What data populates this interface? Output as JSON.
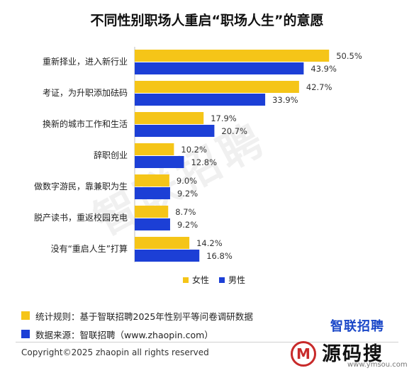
{
  "chart_data": {
    "type": "bar",
    "orientation": "horizontal",
    "title": "不同性别职场人重启“职场人生”的意愿",
    "categories": [
      "重新择业，进入新行业",
      "考证，为升职添加砝码",
      "换新的城市工作和生活",
      "辞职创业",
      "做数字游民，靠兼职为生",
      "脱产读书，重返校园充电",
      "没有“重启人生”打算"
    ],
    "series": [
      {
        "name": "女性",
        "values": [
          50.5,
          42.7,
          17.9,
          10.2,
          9.0,
          8.7,
          14.2
        ],
        "labels": [
          "50.5%",
          "42.7%",
          "17.9%",
          "10.2%",
          "9.0%",
          "8.7%",
          "14.2%"
        ],
        "color": "#f5c518"
      },
      {
        "name": "男性",
        "values": [
          43.9,
          33.9,
          20.7,
          12.8,
          9.2,
          9.2,
          16.8
        ],
        "labels": [
          "43.9%",
          "33.9%",
          "20.7%",
          "12.8%",
          "9.2%",
          "9.2%",
          "16.8%"
        ],
        "color": "#1c3fd6"
      }
    ],
    "xlim": [
      0,
      55
    ],
    "grid": false,
    "legend_position": "bottom"
  },
  "watermark": "智联招聘",
  "notes": [
    {
      "text": "统计规则：基于智联招聘2025年性别平等问卷调研数据",
      "color": "#f5c518"
    },
    {
      "text": "数据来源：智联招聘（www.zhaopin.com）",
      "color": "#1c3fd6"
    }
  ],
  "brand": "智联招聘",
  "copyright": "Copyright©2025 zhaopin all rights reserved",
  "site_logo": {
    "mark": "M",
    "name": "源码搜",
    "url": "www.ymsou.com"
  }
}
